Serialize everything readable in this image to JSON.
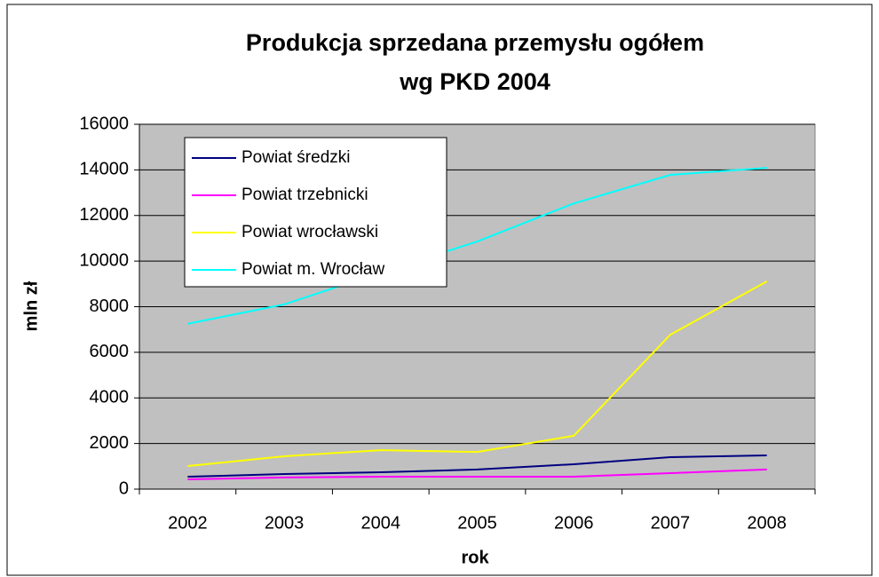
{
  "chart_data": {
    "type": "line",
    "title": [
      "Produkcja sprzedana przemysłu ogółem",
      "wg PKD 2004"
    ],
    "x_label": "rok",
    "y_label": "mln zł",
    "categories": [
      "2002",
      "2003",
      "2004",
      "2005",
      "2006",
      "2007",
      "2008"
    ],
    "series": [
      {
        "name": "Powiat średzki",
        "color": "#000080",
        "values": [
          545,
          660,
          740,
          860,
          1090,
          1400,
          1480
        ]
      },
      {
        "name": "Powiat trzebnicki",
        "color": "#ff00ff",
        "values": [
          430,
          510,
          545,
          545,
          545,
          700,
          860
        ]
      },
      {
        "name": "Powiat wrocławski",
        "color": "#ffff00",
        "values": [
          1010,
          1440,
          1710,
          1630,
          2340,
          6770,
          9110
        ]
      },
      {
        "name": "Powiat m. Wrocław",
        "color": "#00ffff",
        "values": [
          7250,
          8100,
          9500,
          10860,
          12530,
          13780,
          14090
        ]
      }
    ],
    "ylim": [
      0,
      16000
    ],
    "yticks": [
      0,
      2000,
      4000,
      6000,
      8000,
      10000,
      12000,
      14000,
      16000
    ],
    "grid": true,
    "legend": "upper left",
    "plot_background": "#c0c0c0"
  }
}
